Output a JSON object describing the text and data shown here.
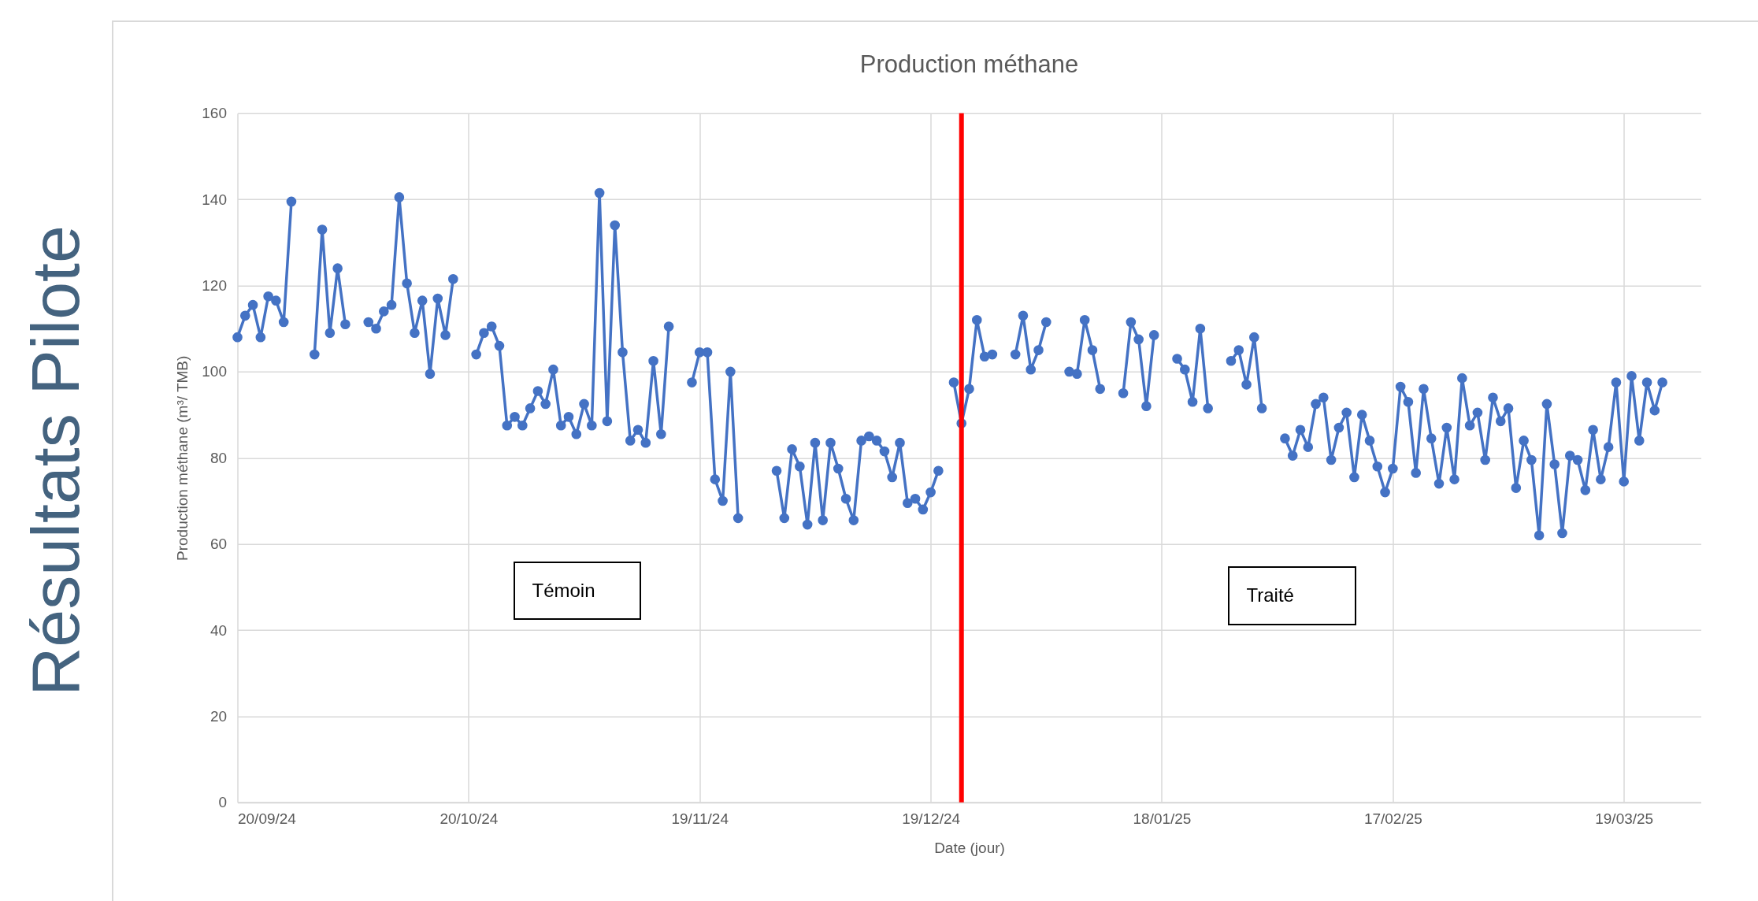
{
  "chart_data": {
    "type": "line",
    "title": "Production méthane",
    "xlabel": "Date (jour)",
    "ylabel": "Production méthane (m³/ TMB)",
    "annotations": [
      "Résultats Pilote",
      "Témoin",
      "Traité"
    ],
    "x": [
      "2024-09-20",
      "2024-09-21",
      "2024-09-22",
      "2024-09-23",
      "2024-09-24",
      "2024-09-25",
      "2024-09-26",
      "2024-09-27",
      "2024-09-28",
      "2024-09-30",
      "2024-10-01",
      "2024-10-02",
      "2024-10-03",
      "2024-10-04",
      "2024-10-05",
      "2024-10-07",
      "2024-10-08",
      "2024-10-09",
      "2024-10-10",
      "2024-10-11",
      "2024-10-12",
      "2024-10-13",
      "2024-10-14",
      "2024-10-15",
      "2024-10-16",
      "2024-10-17",
      "2024-10-18",
      "2024-10-19",
      "2024-10-21",
      "2024-10-22",
      "2024-10-23",
      "2024-10-24",
      "2024-10-25",
      "2024-10-26",
      "2024-10-27",
      "2024-10-28",
      "2024-10-29",
      "2024-10-30",
      "2024-10-31",
      "2024-11-01",
      "2024-11-02",
      "2024-11-03",
      "2024-11-04",
      "2024-11-05",
      "2024-11-06",
      "2024-11-07",
      "2024-11-08",
      "2024-11-09",
      "2024-11-10",
      "2024-11-11",
      "2024-11-12",
      "2024-11-13",
      "2024-11-14",
      "2024-11-15",
      "2024-11-16",
      "2024-11-18",
      "2024-11-19",
      "2024-11-20",
      "2024-11-21",
      "2024-11-22",
      "2024-11-23",
      "2024-11-24",
      "2024-11-25",
      "2024-11-29",
      "2024-11-30",
      "2024-12-01",
      "2024-12-02",
      "2024-12-03",
      "2024-12-04",
      "2024-12-05",
      "2024-12-06",
      "2024-12-07",
      "2024-12-08",
      "2024-12-09",
      "2024-12-10",
      "2024-12-11",
      "2024-12-12",
      "2024-12-13",
      "2024-12-14",
      "2024-12-15",
      "2024-12-16",
      "2024-12-17",
      "2024-12-18",
      "2024-12-19",
      "2024-12-20",
      "2024-12-21",
      "2024-12-22",
      "2024-12-23",
      "2024-12-24",
      "2024-12-25",
      "2024-12-26",
      "2024-12-27",
      "2024-12-28",
      "2024-12-30",
      "2024-12-31",
      "2025-01-01",
      "2025-01-02",
      "2025-01-03",
      "2025-01-04",
      "2025-01-06",
      "2025-01-07",
      "2025-01-08",
      "2025-01-09",
      "2025-01-10",
      "2025-01-11",
      "2025-01-13",
      "2025-01-14",
      "2025-01-15",
      "2025-01-16",
      "2025-01-17",
      "2025-01-18",
      "2025-01-20",
      "2025-01-21",
      "2025-01-22",
      "2025-01-23",
      "2025-01-24",
      "2025-01-25",
      "2025-01-27",
      "2025-01-28",
      "2025-01-29",
      "2025-01-30",
      "2025-01-31",
      "2025-02-01",
      "2025-02-03",
      "2025-02-04",
      "2025-02-05",
      "2025-02-06",
      "2025-02-07",
      "2025-02-08",
      "2025-02-09",
      "2025-02-10",
      "2025-02-11",
      "2025-02-12",
      "2025-02-13",
      "2025-02-14",
      "2025-02-15",
      "2025-02-16",
      "2025-02-17",
      "2025-02-18",
      "2025-02-19",
      "2025-02-20",
      "2025-02-21",
      "2025-02-22",
      "2025-02-23",
      "2025-02-24",
      "2025-02-25",
      "2025-02-26",
      "2025-02-27",
      "2025-02-28",
      "2025-03-01",
      "2025-03-02",
      "2025-03-03",
      "2025-03-04",
      "2025-03-05",
      "2025-03-06",
      "2025-03-07",
      "2025-03-08",
      "2025-03-09",
      "2025-03-10",
      "2025-03-11",
      "2025-03-12",
      "2025-03-13",
      "2025-03-14",
      "2025-03-15",
      "2025-03-16",
      "2025-03-17",
      "2025-03-18",
      "2025-03-19",
      "2025-03-20",
      "2025-03-21",
      "2025-03-22",
      "2025-03-23",
      "2025-03-24"
    ],
    "series": [
      {
        "color": "#4472c4",
        "values": [
          108,
          113,
          115.5,
          108,
          117.5,
          116.5,
          111.5,
          139.5,
          null,
          104,
          133,
          109,
          124,
          111,
          null,
          111.5,
          110,
          114,
          115.5,
          140.5,
          120.5,
          109,
          116.5,
          99.5,
          117,
          108.5,
          121.5,
          null,
          104,
          109,
          110.5,
          106,
          87.5,
          89.5,
          87.5,
          91.5,
          95.5,
          92.5,
          100.5,
          87.5,
          89.5,
          85.5,
          92.5,
          87.5,
          141.5,
          88.5,
          134,
          104.5,
          84,
          86.5,
          83.5,
          102.5,
          85.5,
          110.5,
          null,
          97.5,
          104.5,
          104.5,
          75,
          70,
          100,
          66,
          null,
          77,
          66,
          82,
          78,
          64.5,
          83.5,
          65.5,
          83.5,
          77.5,
          70.5,
          65.5,
          84,
          85,
          84,
          81.5,
          75.5,
          83.5,
          69.5,
          70.5,
          68,
          72,
          77,
          null,
          97.5,
          88,
          96,
          112,
          103.5,
          104,
          null,
          104,
          113,
          100.5,
          105,
          111.5,
          null,
          100,
          99.5,
          112,
          105,
          96,
          null,
          95,
          111.5,
          107.5,
          92,
          108.5,
          null,
          103,
          100.5,
          93,
          110,
          91.5,
          null,
          102.5,
          105,
          97,
          108,
          91.5,
          null,
          84.5,
          80.5,
          86.5,
          82.5,
          92.5,
          94,
          79.5,
          87,
          90.5,
          75.5,
          90,
          84,
          78,
          72,
          77.5,
          96.5,
          93,
          76.5,
          96,
          84.5,
          74,
          87,
          75,
          98.5,
          87.5,
          90.5,
          79.5,
          94,
          88.5,
          91.5,
          73,
          84,
          79.5,
          62,
          92.5,
          78.5,
          62.5,
          80.5,
          79.5,
          72.5,
          86.5,
          75,
          82.5,
          97.5,
          74.5,
          99,
          84,
          97.5,
          91,
          97.5
        ]
      }
    ],
    "xlim": [
      "2024-09-20",
      "2025-03-29"
    ],
    "xticks": [
      {
        "value": "2024-09-20",
        "label": "20/09/24"
      },
      {
        "value": "2024-10-20",
        "label": "20/10/24"
      },
      {
        "value": "2024-11-19",
        "label": "19/11/24"
      },
      {
        "value": "2024-12-19",
        "label": "19/12/24"
      },
      {
        "value": "2025-01-18",
        "label": "18/01/25"
      },
      {
        "value": "2025-02-17",
        "label": "17/02/25"
      },
      {
        "value": "2025-03-19",
        "label": "19/03/25"
      }
    ],
    "ylim": [
      0,
      160
    ],
    "yticks": [
      0,
      20,
      40,
      60,
      80,
      100,
      120,
      140,
      160
    ],
    "ref_lines": [
      {
        "axis": "x",
        "value": "2024-12-23",
        "color": "#ff0000"
      }
    ],
    "grid": true,
    "marker": "circle",
    "line_style": "solid"
  }
}
